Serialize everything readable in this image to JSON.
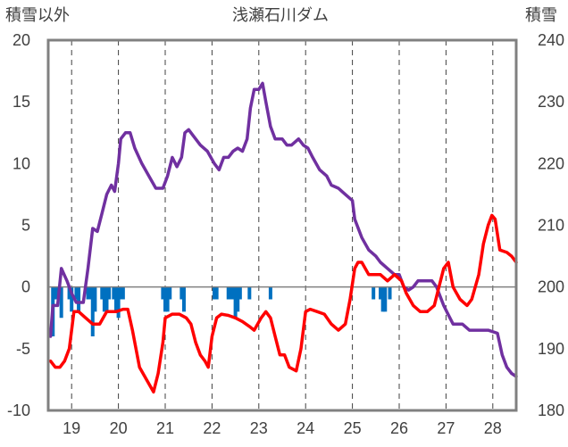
{
  "chart_data": {
    "type": "line",
    "title": "浅瀬石川ダム",
    "left_axis_label": "積雪以外",
    "right_axis_label": "積雪",
    "x_range": [
      18.5,
      28.5
    ],
    "x_ticks": [
      19,
      20,
      21,
      22,
      23,
      24,
      25,
      26,
      27,
      28
    ],
    "x_tick_labels": [
      "19",
      "20",
      "21",
      "22",
      "23",
      "24",
      "25",
      "26",
      "27",
      "28"
    ],
    "y_left_range": [
      -10,
      20
    ],
    "y_left_ticks": [
      20,
      15,
      10,
      5,
      0,
      -5,
      -10
    ],
    "y_left_tick_labels": [
      "20",
      "15",
      "10",
      "5",
      "0",
      "-5",
      "-10"
    ],
    "y_right_range": [
      180,
      240
    ],
    "y_right_ticks": [
      240,
      230,
      220,
      210,
      200,
      190,
      180
    ],
    "y_right_tick_labels": [
      "240",
      "230",
      "220",
      "210",
      "200",
      "190",
      "180"
    ],
    "grid": "vertical dashed at each day",
    "colors": {
      "snow_depth": "#7030A0",
      "temperature": "#FF0000",
      "precipitation": "#0070C0",
      "zero_line": "#808080",
      "frame": "#808080"
    },
    "series": [
      {
        "axis": "right",
        "color": "#7030A0",
        "points": [
          [
            18.55,
            192
          ],
          [
            18.6,
            197
          ],
          [
            18.7,
            197
          ],
          [
            18.78,
            203
          ],
          [
            18.9,
            201
          ],
          [
            19.0,
            199
          ],
          [
            19.1,
            197.5
          ],
          [
            19.25,
            197.5
          ],
          [
            19.35,
            203
          ],
          [
            19.45,
            209.5
          ],
          [
            19.55,
            209
          ],
          [
            19.65,
            212
          ],
          [
            19.75,
            215
          ],
          [
            19.85,
            216.5
          ],
          [
            19.92,
            215.5
          ],
          [
            20.0,
            220
          ],
          [
            20.05,
            224
          ],
          [
            20.15,
            225
          ],
          [
            20.25,
            225
          ],
          [
            20.35,
            222.5
          ],
          [
            20.5,
            220
          ],
          [
            20.65,
            218
          ],
          [
            20.8,
            216
          ],
          [
            20.95,
            216
          ],
          [
            21.05,
            218
          ],
          [
            21.15,
            221
          ],
          [
            21.25,
            219.5
          ],
          [
            21.35,
            221
          ],
          [
            21.42,
            225
          ],
          [
            21.5,
            225.5
          ],
          [
            21.6,
            224.5
          ],
          [
            21.75,
            223
          ],
          [
            21.9,
            222
          ],
          [
            22.05,
            220
          ],
          [
            22.15,
            219
          ],
          [
            22.25,
            221
          ],
          [
            22.35,
            221
          ],
          [
            22.45,
            222
          ],
          [
            22.55,
            222.5
          ],
          [
            22.65,
            222
          ],
          [
            22.75,
            224
          ],
          [
            22.82,
            229
          ],
          [
            22.9,
            232
          ],
          [
            23.0,
            232
          ],
          [
            23.08,
            233
          ],
          [
            23.15,
            230
          ],
          [
            23.25,
            226
          ],
          [
            23.35,
            224
          ],
          [
            23.5,
            224
          ],
          [
            23.6,
            223
          ],
          [
            23.7,
            223
          ],
          [
            23.85,
            224
          ],
          [
            23.95,
            223
          ],
          [
            24.05,
            222.5
          ],
          [
            24.15,
            221
          ],
          [
            24.3,
            219
          ],
          [
            24.45,
            218
          ],
          [
            24.55,
            216.5
          ],
          [
            24.7,
            216
          ],
          [
            24.85,
            215
          ],
          [
            25.0,
            214
          ],
          [
            25.05,
            211
          ],
          [
            25.2,
            208
          ],
          [
            25.35,
            206
          ],
          [
            25.5,
            205
          ],
          [
            25.6,
            204
          ],
          [
            25.75,
            203
          ],
          [
            25.9,
            202
          ],
          [
            26.0,
            202
          ],
          [
            26.1,
            200
          ],
          [
            26.2,
            199.5
          ],
          [
            26.3,
            200
          ],
          [
            26.4,
            201
          ],
          [
            26.55,
            201
          ],
          [
            26.7,
            201
          ],
          [
            26.8,
            200
          ],
          [
            26.85,
            199
          ],
          [
            26.95,
            197
          ],
          [
            27.05,
            195.5
          ],
          [
            27.15,
            194
          ],
          [
            27.35,
            194
          ],
          [
            27.5,
            193
          ],
          [
            27.7,
            193
          ],
          [
            27.9,
            193
          ],
          [
            28.1,
            192.5
          ],
          [
            28.2,
            189
          ],
          [
            28.3,
            187
          ],
          [
            28.4,
            186
          ],
          [
            28.5,
            185.5
          ]
        ]
      },
      {
        "axis": "left",
        "color": "#FF0000",
        "points": [
          [
            18.55,
            -6
          ],
          [
            18.65,
            -6.5
          ],
          [
            18.75,
            -6.5
          ],
          [
            18.85,
            -6
          ],
          [
            18.95,
            -5
          ],
          [
            19.05,
            -2
          ],
          [
            19.15,
            -2
          ],
          [
            19.3,
            -2.5
          ],
          [
            19.45,
            -3
          ],
          [
            19.6,
            -3
          ],
          [
            19.75,
            -2
          ],
          [
            19.85,
            -2
          ],
          [
            19.95,
            -2
          ],
          [
            20.1,
            -1.8
          ],
          [
            20.2,
            -1.8
          ],
          [
            20.3,
            -3.5
          ],
          [
            20.45,
            -6.5
          ],
          [
            20.6,
            -7.5
          ],
          [
            20.75,
            -8.5
          ],
          [
            20.85,
            -7
          ],
          [
            20.95,
            -4.5
          ],
          [
            21.0,
            -2.5
          ],
          [
            21.15,
            -2.2
          ],
          [
            21.3,
            -2.2
          ],
          [
            21.45,
            -2.5
          ],
          [
            21.55,
            -3
          ],
          [
            21.65,
            -4.5
          ],
          [
            21.75,
            -5.5
          ],
          [
            21.85,
            -6
          ],
          [
            21.92,
            -6.5
          ],
          [
            22.0,
            -4
          ],
          [
            22.1,
            -2.5
          ],
          [
            22.2,
            -2.2
          ],
          [
            22.35,
            -2.3
          ],
          [
            22.5,
            -2.5
          ],
          [
            22.65,
            -2.8
          ],
          [
            22.8,
            -3.2
          ],
          [
            22.9,
            -3.5
          ],
          [
            23.05,
            -2.5
          ],
          [
            23.15,
            -2
          ],
          [
            23.25,
            -2.5
          ],
          [
            23.35,
            -4
          ],
          [
            23.45,
            -5.5
          ],
          [
            23.55,
            -5.5
          ],
          [
            23.65,
            -6.5
          ],
          [
            23.8,
            -6.8
          ],
          [
            23.9,
            -5
          ],
          [
            24.0,
            -2
          ],
          [
            24.1,
            -1.8
          ],
          [
            24.25,
            -2
          ],
          [
            24.4,
            -2.2
          ],
          [
            24.55,
            -3
          ],
          [
            24.7,
            -3.5
          ],
          [
            24.85,
            -3
          ],
          [
            24.95,
            -1
          ],
          [
            25.05,
            1.5
          ],
          [
            25.12,
            2
          ],
          [
            25.2,
            2
          ],
          [
            25.35,
            1
          ],
          [
            25.5,
            1
          ],
          [
            25.6,
            1
          ],
          [
            25.75,
            0.5
          ],
          [
            25.9,
            1
          ],
          [
            26.05,
            0.5
          ],
          [
            26.15,
            -0.5
          ],
          [
            26.3,
            -1.5
          ],
          [
            26.45,
            -2
          ],
          [
            26.6,
            -2
          ],
          [
            26.75,
            -1.5
          ],
          [
            26.85,
            0
          ],
          [
            26.95,
            1.5
          ],
          [
            27.05,
            2
          ],
          [
            27.15,
            0
          ],
          [
            27.3,
            -1
          ],
          [
            27.45,
            -1.5
          ],
          [
            27.55,
            -1
          ],
          [
            27.7,
            1
          ],
          [
            27.8,
            3.5
          ],
          [
            27.9,
            5
          ],
          [
            27.98,
            5.8
          ],
          [
            28.05,
            5.5
          ],
          [
            28.15,
            3
          ],
          [
            28.3,
            2.8
          ],
          [
            28.4,
            2.5
          ],
          [
            28.5,
            2
          ]
        ]
      },
      {
        "type": "bar",
        "axis": "left",
        "color": "#0070C0",
        "points": [
          [
            18.6,
            -4
          ],
          [
            18.65,
            -1
          ],
          [
            18.7,
            -1
          ],
          [
            18.78,
            -2.5
          ],
          [
            18.95,
            -1
          ],
          [
            19.0,
            -2
          ],
          [
            19.1,
            -1
          ],
          [
            19.15,
            -2
          ],
          [
            19.35,
            -1
          ],
          [
            19.4,
            -1
          ],
          [
            19.45,
            -4
          ],
          [
            19.5,
            -2
          ],
          [
            19.65,
            -1
          ],
          [
            19.7,
            -2
          ],
          [
            19.75,
            -2
          ],
          [
            19.8,
            -1
          ],
          [
            19.9,
            -1
          ],
          [
            19.95,
            -2
          ],
          [
            20.0,
            -2.5
          ],
          [
            20.05,
            -1
          ],
          [
            20.1,
            -1
          ],
          [
            20.95,
            -1
          ],
          [
            21.0,
            -2
          ],
          [
            21.05,
            -2
          ],
          [
            21.1,
            -1
          ],
          [
            21.35,
            -1
          ],
          [
            21.4,
            -2
          ],
          [
            22.05,
            -1
          ],
          [
            22.1,
            -1
          ],
          [
            22.35,
            -1
          ],
          [
            22.4,
            -1
          ],
          [
            22.45,
            -1
          ],
          [
            22.5,
            -2.5
          ],
          [
            22.55,
            -2
          ],
          [
            22.6,
            -1
          ],
          [
            22.8,
            -1
          ],
          [
            23.25,
            -1
          ],
          [
            25.45,
            -1
          ],
          [
            25.6,
            -1
          ],
          [
            25.65,
            -2
          ],
          [
            25.7,
            -2
          ],
          [
            25.8,
            -1
          ]
        ]
      }
    ]
  }
}
